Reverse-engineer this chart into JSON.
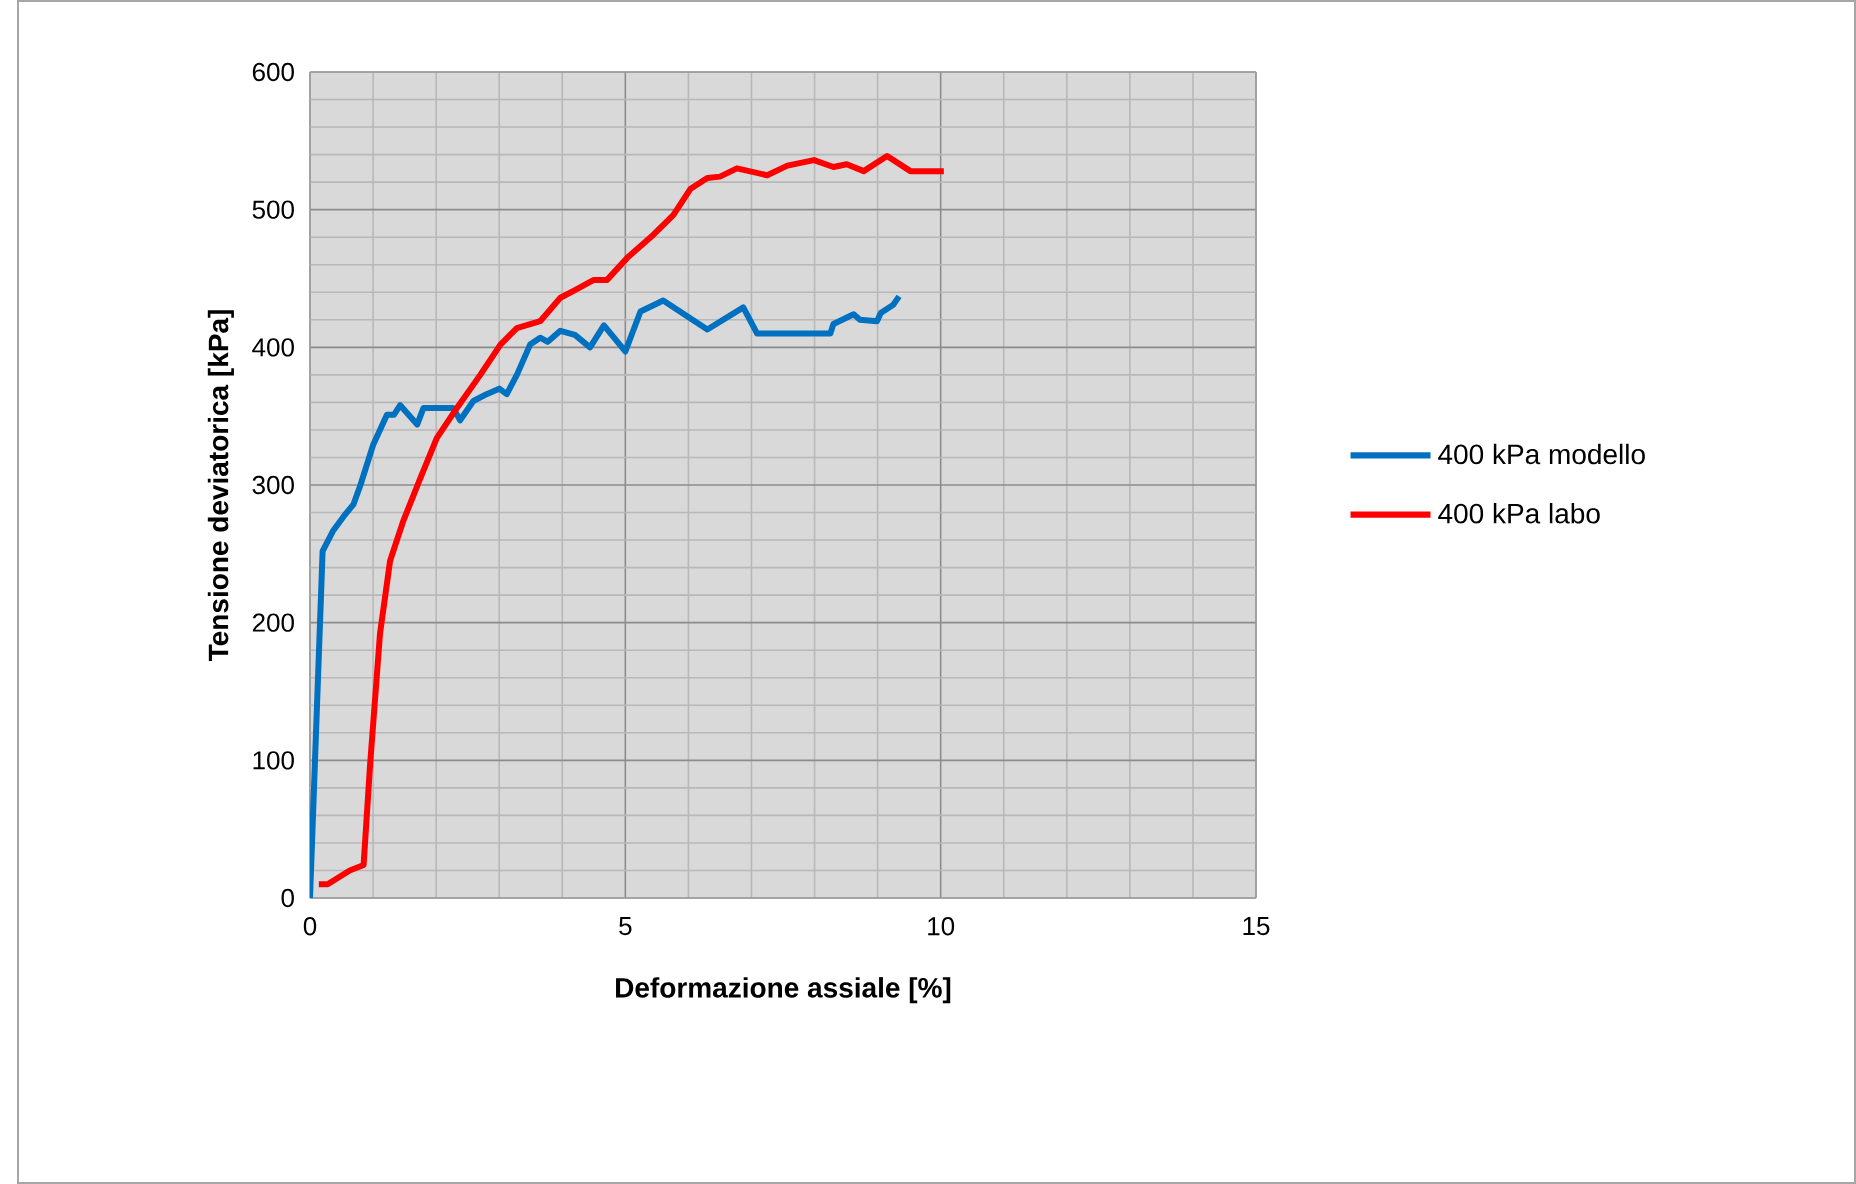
{
  "chart_data": {
    "type": "line",
    "xlabel": "Deformazione assiale [%]",
    "ylabel": "Tensione deviatorica [kPa]",
    "xlim": [
      0,
      15
    ],
    "xticks": [
      0,
      5,
      10,
      15
    ],
    "ylim": [
      0,
      600
    ],
    "yticks": [
      0,
      100,
      200,
      300,
      400,
      500,
      600
    ],
    "grid": true,
    "legend": "right",
    "marker": "none",
    "line_style": "solid",
    "series": [
      {
        "name": "400 kPa modello",
        "color": "#0070c0",
        "x": [
          0,
          0.2,
          0.37,
          0.53,
          0.69,
          0.8,
          1.0,
          1.22,
          1.33,
          1.43,
          1.7,
          1.8,
          2.27,
          2.38,
          2.59,
          2.8,
          3.0,
          3.12,
          3.28,
          3.49,
          3.65,
          3.77,
          3.97,
          4.2,
          4.44,
          4.66,
          5.0,
          5.24,
          5.6,
          6.3,
          6.87,
          7.09,
          8.25,
          8.3,
          8.62,
          8.72,
          8.99,
          9.05,
          9.25,
          9.34
        ],
        "values": [
          0,
          252,
          267,
          277,
          286,
          300,
          329,
          351,
          351,
          358,
          344,
          356,
          356,
          347,
          361,
          366,
          370,
          366,
          380,
          402,
          407,
          404,
          412,
          409,
          400,
          416,
          397,
          426,
          434,
          413,
          429,
          410,
          410,
          417,
          424,
          420,
          419,
          425,
          431,
          437
        ]
      },
      {
        "name": "400 kPa labo",
        "color": "#ff0000",
        "x": [
          0.14,
          0.28,
          0.63,
          0.85,
          0.95,
          1.11,
          1.27,
          1.48,
          1.75,
          2.01,
          2.33,
          2.7,
          3.02,
          3.28,
          3.65,
          3.97,
          4.18,
          4.5,
          4.71,
          5.03,
          5.45,
          5.76,
          6.03,
          6.3,
          6.5,
          6.77,
          7.25,
          7.57,
          7.99,
          8.3,
          8.51,
          8.78,
          9.15,
          9.52,
          10.05
        ],
        "values": [
          10,
          10,
          20,
          24,
          95,
          192,
          245,
          274,
          305,
          334,
          356,
          380,
          402,
          414,
          419,
          436,
          441,
          449,
          449,
          465,
          482,
          496,
          515,
          523,
          524,
          530,
          525,
          532,
          536,
          531,
          533,
          528,
          539,
          528,
          528
        ]
      }
    ]
  }
}
